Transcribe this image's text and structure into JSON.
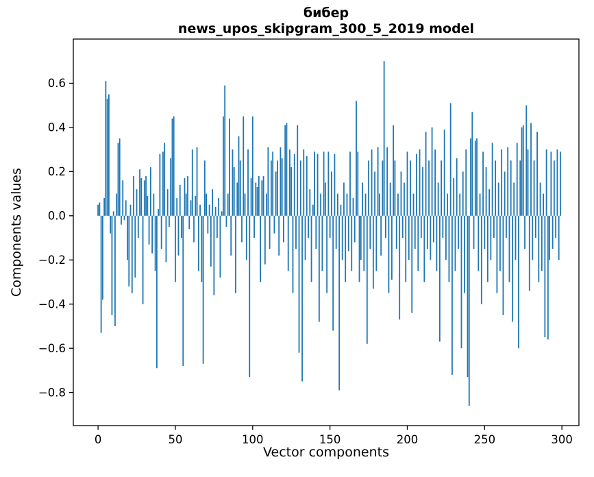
{
  "figure": {
    "title_line1": "бибер",
    "title_line2": "news_upos_skipgram_300_5_2019 model",
    "xlabel": "Vector components",
    "ylabel": "Components values"
  },
  "chart_data": {
    "type": "bar",
    "title": "бибер — news_upos_skipgram_300_5_2019 model",
    "xlabel": "Vector components",
    "ylabel": "Components values",
    "bar_color": "#1f77b4",
    "grid": false,
    "legend": "none",
    "xlim": [
      -16,
      311
    ],
    "ylim": [
      -0.95,
      0.8
    ],
    "xticks": [
      0,
      50,
      100,
      150,
      200,
      250,
      300
    ],
    "yticks": [
      0.6,
      0.4,
      0.2,
      0.0,
      -0.2,
      -0.4,
      -0.6,
      -0.8
    ],
    "values": [
      0.05,
      0.06,
      -0.53,
      -0.38,
      0.08,
      0.61,
      0.53,
      0.55,
      -0.08,
      -0.45,
      0.02,
      -0.5,
      0.1,
      0.33,
      0.35,
      -0.04,
      0.16,
      -0.02,
      0.07,
      -0.2,
      -0.32,
      0.05,
      -0.35,
      0.18,
      -0.28,
      0.12,
      -0.1,
      0.21,
      0.17,
      -0.4,
      0.16,
      0.18,
      0.09,
      -0.13,
      0.22,
      -0.17,
      0.1,
      -0.25,
      -0.69,
      0.03,
      0.28,
      -0.15,
      0.29,
      0.33,
      -0.21,
      0.12,
      -0.05,
      0.26,
      0.44,
      0.45,
      -0.3,
      0.08,
      -0.18,
      0.14,
      -0.1,
      -0.68,
      0.17,
      0.1,
      0.18,
      -0.06,
      0.07,
      0.3,
      -0.12,
      0.09,
      0.31,
      -0.25,
      0.05,
      -0.3,
      -0.67,
      0.25,
      0.1,
      -0.08,
      0.05,
      -0.23,
      0.12,
      -0.36,
      0.04,
      -0.1,
      0.08,
      -0.28,
      0.02,
      0.45,
      0.59,
      -0.05,
      0.1,
      0.44,
      -0.18,
      0.3,
      0.22,
      -0.35,
      0.15,
      0.36,
      0.25,
      -0.12,
      0.45,
      0.1,
      -0.2,
      0.3,
      -0.73,
      0.17,
      0.45,
      -0.1,
      0.15,
      0.13,
      0.18,
      -0.3,
      0.16,
      0.18,
      -0.22,
      0.1,
      0.31,
      -0.15,
      0.25,
      0.29,
      -0.08,
      0.2,
      0.25,
      -0.18,
      0.31,
      0.26,
      -0.12,
      0.41,
      0.42,
      -0.25,
      0.3,
      0.22,
      -0.35,
      0.28,
      -0.15,
      0.41,
      -0.62,
      0.25,
      -0.75,
      0.3,
      -0.2,
      0.27,
      -0.1,
      0.12,
      -0.3,
      0.05,
      0.29,
      -0.15,
      0.28,
      -0.48,
      0.1,
      -0.25,
      0.29,
      0.15,
      -0.35,
      0.29,
      -0.1,
      0.2,
      -0.52,
      0.28,
      -0.15,
      0.1,
      -0.79,
      0.05,
      -0.2,
      0.15,
      -0.3,
      0.1,
      -0.16,
      0.29,
      -0.25,
      0.08,
      -0.12,
      0.52,
      0.29,
      -0.3,
      -0.2,
      0.15,
      -0.25,
      0.1,
      -0.58,
      0.25,
      -0.15,
      0.3,
      -0.33,
      0.2,
      -0.25,
      0.31,
      0.1,
      -0.18,
      0.25,
      0.7,
      -0.1,
      0.31,
      -0.35,
      0.15,
      -0.29,
      0.41,
      0.25,
      -0.15,
      0.1,
      -0.47,
      0.2,
      -0.1,
      0.15,
      -0.3,
      0.29,
      -0.2,
      0.25,
      -0.44,
      0.1,
      -0.15,
      0.28,
      -0.25,
      0.3,
      -0.1,
      0.22,
      -0.3,
      0.38,
      -0.15,
      0.25,
      -0.2,
      0.4,
      -0.12,
      0.3,
      -0.25,
      0.15,
      -0.57,
      0.25,
      -0.1,
      0.39,
      -0.2,
      0.1,
      -0.3,
      0.51,
      -0.72,
      0.17,
      -0.25,
      0.26,
      -0.15,
      0.1,
      -0.6,
      0.2,
      -0.35,
      0.3,
      -0.73,
      -0.86,
      0.35,
      0.47,
      -0.15,
      0.34,
      0.35,
      -0.25,
      0.1,
      -0.4,
      0.29,
      -0.15,
      0.22,
      -0.3,
      0.12,
      -0.2,
      0.33,
      -0.1,
      0.25,
      -0.35,
      0.15,
      -0.25,
      0.3,
      -0.45,
      0.2,
      -0.1,
      0.31,
      -0.3,
      0.25,
      -0.48,
      0.15,
      -0.2,
      0.33,
      -0.6,
      0.25,
      0.4,
      0.41,
      -0.15,
      0.5,
      0.3,
      -0.34,
      0.42,
      -0.2,
      0.25,
      -0.1,
      0.38,
      -0.3,
      0.15,
      -0.25,
      0.1,
      -0.55,
      0.3,
      -0.56,
      -0.2,
      0.29,
      -0.15,
      0.25,
      -0.1,
      0.3,
      -0.2,
      0.29
    ]
  }
}
